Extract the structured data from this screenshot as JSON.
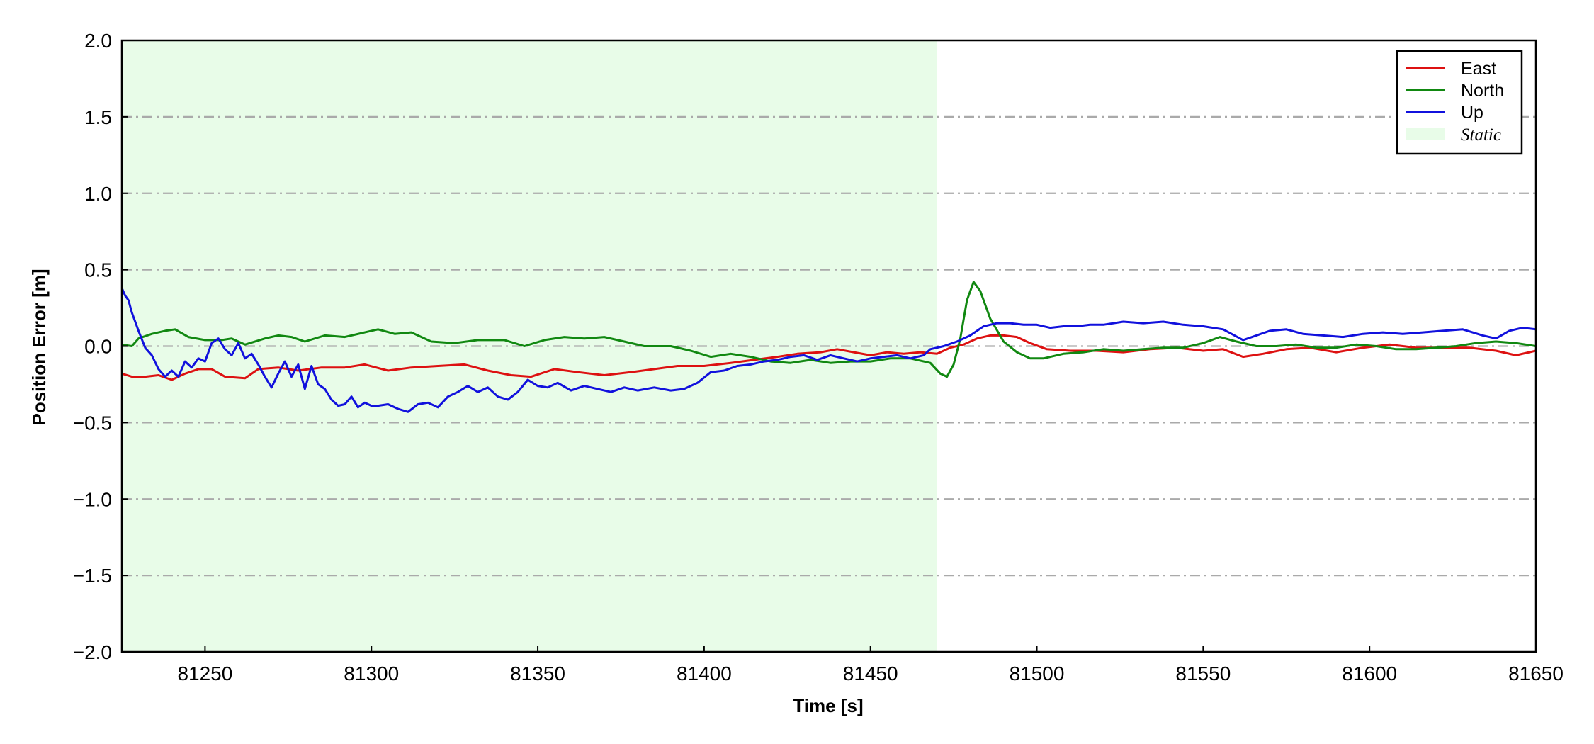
{
  "chart_data": {
    "type": "line",
    "xlabel": "Time [s]",
    "ylabel": "Position Error [m]",
    "xlim": [
      81225,
      81650
    ],
    "ylim": [
      -2.0,
      2.0
    ],
    "xticks": [
      81250,
      81300,
      81350,
      81400,
      81450,
      81500,
      81550,
      81600,
      81650
    ],
    "xtick_labels": [
      "81250",
      "81300",
      "81350",
      "81400",
      "81450",
      "81500",
      "81550",
      "81600",
      "81650"
    ],
    "yticks": [
      -2.0,
      -1.5,
      -1.0,
      -0.5,
      0.0,
      0.5,
      1.0,
      1.5,
      2.0
    ],
    "ytick_labels": [
      "−2.0",
      "−1.5",
      "−1.0",
      "−0.5",
      "0.0",
      "0.5",
      "1.0",
      "1.5",
      "2.0"
    ],
    "grid": "horizontal dash-dot",
    "legend_position": "top-right",
    "shaded_region": {
      "name": "Static",
      "x_start": 81225,
      "x_end": 81470,
      "color": "#e8fce8"
    },
    "series": [
      {
        "name": "East",
        "color": "#dd1111",
        "points": [
          [
            81225,
            -0.18
          ],
          [
            81228,
            -0.2
          ],
          [
            81232,
            -0.2
          ],
          [
            81236,
            -0.19
          ],
          [
            81240,
            -0.22
          ],
          [
            81244,
            -0.18
          ],
          [
            81248,
            -0.15
          ],
          [
            81252,
            -0.15
          ],
          [
            81256,
            -0.2
          ],
          [
            81262,
            -0.21
          ],
          [
            81266,
            -0.15
          ],
          [
            81272,
            -0.14
          ],
          [
            81278,
            -0.16
          ],
          [
            81285,
            -0.14
          ],
          [
            81292,
            -0.14
          ],
          [
            81298,
            -0.12
          ],
          [
            81305,
            -0.16
          ],
          [
            81312,
            -0.14
          ],
          [
            81320,
            -0.13
          ],
          [
            81328,
            -0.12
          ],
          [
            81335,
            -0.16
          ],
          [
            81342,
            -0.19
          ],
          [
            81348,
            -0.2
          ],
          [
            81355,
            -0.15
          ],
          [
            81362,
            -0.17
          ],
          [
            81370,
            -0.19
          ],
          [
            81378,
            -0.17
          ],
          [
            81385,
            -0.15
          ],
          [
            81392,
            -0.13
          ],
          [
            81400,
            -0.13
          ],
          [
            81408,
            -0.11
          ],
          [
            81415,
            -0.09
          ],
          [
            81422,
            -0.07
          ],
          [
            81428,
            -0.05
          ],
          [
            81435,
            -0.04
          ],
          [
            81440,
            -0.02
          ],
          [
            81445,
            -0.04
          ],
          [
            81450,
            -0.06
          ],
          [
            81455,
            -0.04
          ],
          [
            81460,
            -0.05
          ],
          [
            81465,
            -0.04
          ],
          [
            81470,
            -0.05
          ],
          [
            81474,
            -0.01
          ],
          [
            81478,
            0.01
          ],
          [
            81482,
            0.05
          ],
          [
            81486,
            0.07
          ],
          [
            81490,
            0.07
          ],
          [
            81494,
            0.06
          ],
          [
            81498,
            0.02
          ],
          [
            81503,
            -0.02
          ],
          [
            81510,
            -0.03
          ],
          [
            81518,
            -0.03
          ],
          [
            81526,
            -0.04
          ],
          [
            81534,
            -0.02
          ],
          [
            81542,
            -0.01
          ],
          [
            81550,
            -0.03
          ],
          [
            81556,
            -0.02
          ],
          [
            81562,
            -0.07
          ],
          [
            81568,
            -0.05
          ],
          [
            81575,
            -0.02
          ],
          [
            81582,
            -0.01
          ],
          [
            81590,
            -0.04
          ],
          [
            81598,
            -0.01
          ],
          [
            81606,
            0.01
          ],
          [
            81614,
            -0.01
          ],
          [
            81622,
            -0.01
          ],
          [
            81630,
            -0.01
          ],
          [
            81638,
            -0.03
          ],
          [
            81644,
            -0.06
          ],
          [
            81650,
            -0.03
          ]
        ]
      },
      {
        "name": "North",
        "color": "#118811",
        "points": [
          [
            81225,
            0.01
          ],
          [
            81228,
            0.0
          ],
          [
            81230,
            0.05
          ],
          [
            81234,
            0.08
          ],
          [
            81238,
            0.1
          ],
          [
            81241,
            0.11
          ],
          [
            81245,
            0.06
          ],
          [
            81250,
            0.04
          ],
          [
            81255,
            0.04
          ],
          [
            81258,
            0.05
          ],
          [
            81262,
            0.01
          ],
          [
            81268,
            0.05
          ],
          [
            81272,
            0.07
          ],
          [
            81276,
            0.06
          ],
          [
            81280,
            0.03
          ],
          [
            81286,
            0.07
          ],
          [
            81292,
            0.06
          ],
          [
            81298,
            0.09
          ],
          [
            81302,
            0.11
          ],
          [
            81307,
            0.08
          ],
          [
            81312,
            0.09
          ],
          [
            81318,
            0.03
          ],
          [
            81325,
            0.02
          ],
          [
            81332,
            0.04
          ],
          [
            81340,
            0.04
          ],
          [
            81346,
            0.0
          ],
          [
            81352,
            0.04
          ],
          [
            81358,
            0.06
          ],
          [
            81364,
            0.05
          ],
          [
            81370,
            0.06
          ],
          [
            81376,
            0.03
          ],
          [
            81382,
            0.0
          ],
          [
            81390,
            0.0
          ],
          [
            81396,
            -0.03
          ],
          [
            81402,
            -0.07
          ],
          [
            81408,
            -0.05
          ],
          [
            81414,
            -0.07
          ],
          [
            81420,
            -0.1
          ],
          [
            81426,
            -0.11
          ],
          [
            81432,
            -0.09
          ],
          [
            81438,
            -0.11
          ],
          [
            81444,
            -0.1
          ],
          [
            81450,
            -0.1
          ],
          [
            81456,
            -0.08
          ],
          [
            81462,
            -0.08
          ],
          [
            81468,
            -0.11
          ],
          [
            81471,
            -0.18
          ],
          [
            81473,
            -0.2
          ],
          [
            81475,
            -0.12
          ],
          [
            81477,
            0.05
          ],
          [
            81479,
            0.3
          ],
          [
            81481,
            0.42
          ],
          [
            81483,
            0.36
          ],
          [
            81486,
            0.18
          ],
          [
            81490,
            0.03
          ],
          [
            81494,
            -0.04
          ],
          [
            81498,
            -0.08
          ],
          [
            81502,
            -0.08
          ],
          [
            81508,
            -0.05
          ],
          [
            81514,
            -0.04
          ],
          [
            81520,
            -0.02
          ],
          [
            81526,
            -0.03
          ],
          [
            81532,
            -0.02
          ],
          [
            81538,
            -0.01
          ],
          [
            81544,
            -0.01
          ],
          [
            81550,
            0.02
          ],
          [
            81555,
            0.06
          ],
          [
            81560,
            0.03
          ],
          [
            81566,
            0.0
          ],
          [
            81572,
            0.0
          ],
          [
            81578,
            0.01
          ],
          [
            81584,
            -0.01
          ],
          [
            81590,
            -0.01
          ],
          [
            81596,
            0.01
          ],
          [
            81602,
            0.0
          ],
          [
            81608,
            -0.02
          ],
          [
            81614,
            -0.02
          ],
          [
            81620,
            -0.01
          ],
          [
            81626,
            0.0
          ],
          [
            81632,
            0.02
          ],
          [
            81638,
            0.03
          ],
          [
            81644,
            0.02
          ],
          [
            81650,
            0.0
          ]
        ]
      },
      {
        "name": "Up",
        "color": "#1111dd",
        "points": [
          [
            81225,
            0.38
          ],
          [
            81226,
            0.33
          ],
          [
            81227,
            0.3
          ],
          [
            81228,
            0.22
          ],
          [
            81230,
            0.1
          ],
          [
            81232,
            -0.01
          ],
          [
            81234,
            -0.06
          ],
          [
            81236,
            -0.15
          ],
          [
            81238,
            -0.2
          ],
          [
            81240,
            -0.16
          ],
          [
            81242,
            -0.2
          ],
          [
            81244,
            -0.1
          ],
          [
            81246,
            -0.14
          ],
          [
            81248,
            -0.08
          ],
          [
            81250,
            -0.1
          ],
          [
            81252,
            0.02
          ],
          [
            81254,
            0.05
          ],
          [
            81256,
            -0.02
          ],
          [
            81258,
            -0.06
          ],
          [
            81260,
            0.02
          ],
          [
            81262,
            -0.08
          ],
          [
            81264,
            -0.05
          ],
          [
            81266,
            -0.12
          ],
          [
            81268,
            -0.2
          ],
          [
            81270,
            -0.27
          ],
          [
            81272,
            -0.18
          ],
          [
            81274,
            -0.1
          ],
          [
            81276,
            -0.2
          ],
          [
            81278,
            -0.12
          ],
          [
            81280,
            -0.28
          ],
          [
            81282,
            -0.13
          ],
          [
            81284,
            -0.25
          ],
          [
            81286,
            -0.28
          ],
          [
            81288,
            -0.35
          ],
          [
            81290,
            -0.39
          ],
          [
            81292,
            -0.38
          ],
          [
            81294,
            -0.33
          ],
          [
            81296,
            -0.4
          ],
          [
            81298,
            -0.37
          ],
          [
            81300,
            -0.39
          ],
          [
            81302,
            -0.39
          ],
          [
            81305,
            -0.38
          ],
          [
            81308,
            -0.41
          ],
          [
            81311,
            -0.43
          ],
          [
            81314,
            -0.38
          ],
          [
            81317,
            -0.37
          ],
          [
            81320,
            -0.4
          ],
          [
            81323,
            -0.33
          ],
          [
            81326,
            -0.3
          ],
          [
            81329,
            -0.26
          ],
          [
            81332,
            -0.3
          ],
          [
            81335,
            -0.27
          ],
          [
            81338,
            -0.33
          ],
          [
            81341,
            -0.35
          ],
          [
            81344,
            -0.3
          ],
          [
            81347,
            -0.22
          ],
          [
            81350,
            -0.26
          ],
          [
            81353,
            -0.27
          ],
          [
            81356,
            -0.24
          ],
          [
            81360,
            -0.29
          ],
          [
            81364,
            -0.26
          ],
          [
            81368,
            -0.28
          ],
          [
            81372,
            -0.3
          ],
          [
            81376,
            -0.27
          ],
          [
            81380,
            -0.29
          ],
          [
            81385,
            -0.27
          ],
          [
            81390,
            -0.29
          ],
          [
            81394,
            -0.28
          ],
          [
            81398,
            -0.24
          ],
          [
            81402,
            -0.17
          ],
          [
            81406,
            -0.16
          ],
          [
            81410,
            -0.13
          ],
          [
            81414,
            -0.12
          ],
          [
            81418,
            -0.1
          ],
          [
            81422,
            -0.09
          ],
          [
            81426,
            -0.07
          ],
          [
            81430,
            -0.06
          ],
          [
            81434,
            -0.09
          ],
          [
            81438,
            -0.06
          ],
          [
            81442,
            -0.08
          ],
          [
            81446,
            -0.1
          ],
          [
            81450,
            -0.08
          ],
          [
            81454,
            -0.07
          ],
          [
            81458,
            -0.06
          ],
          [
            81462,
            -0.08
          ],
          [
            81466,
            -0.06
          ],
          [
            81468,
            -0.02
          ],
          [
            81472,
            0.0
          ],
          [
            81476,
            0.03
          ],
          [
            81480,
            0.07
          ],
          [
            81484,
            0.13
          ],
          [
            81488,
            0.15
          ],
          [
            81492,
            0.15
          ],
          [
            81496,
            0.14
          ],
          [
            81500,
            0.14
          ],
          [
            81504,
            0.12
          ],
          [
            81508,
            0.13
          ],
          [
            81512,
            0.13
          ],
          [
            81516,
            0.14
          ],
          [
            81520,
            0.14
          ],
          [
            81526,
            0.16
          ],
          [
            81532,
            0.15
          ],
          [
            81538,
            0.16
          ],
          [
            81544,
            0.14
          ],
          [
            81550,
            0.13
          ],
          [
            81556,
            0.11
          ],
          [
            81562,
            0.04
          ],
          [
            81566,
            0.07
          ],
          [
            81570,
            0.1
          ],
          [
            81575,
            0.11
          ],
          [
            81580,
            0.08
          ],
          [
            81586,
            0.07
          ],
          [
            81592,
            0.06
          ],
          [
            81598,
            0.08
          ],
          [
            81604,
            0.09
          ],
          [
            81610,
            0.08
          ],
          [
            81616,
            0.09
          ],
          [
            81622,
            0.1
          ],
          [
            81628,
            0.11
          ],
          [
            81634,
            0.07
          ],
          [
            81638,
            0.05
          ],
          [
            81642,
            0.1
          ],
          [
            81646,
            0.12
          ],
          [
            81650,
            0.11
          ]
        ]
      }
    ]
  }
}
